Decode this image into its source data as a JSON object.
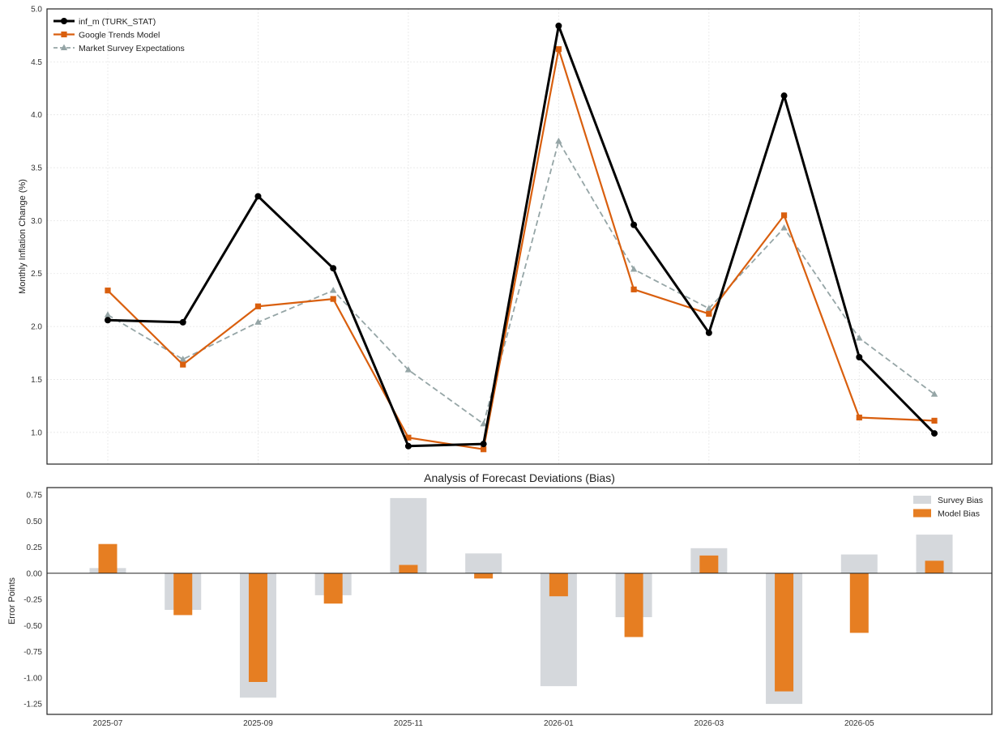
{
  "chart_data": [
    {
      "type": "line",
      "title": "",
      "xlabel": "",
      "ylabel": "Monthly Inflation Change (%)",
      "ylim": [
        0.7,
        5.0
      ],
      "yticks": [
        1.0,
        1.5,
        2.0,
        2.5,
        3.0,
        3.5,
        4.0,
        4.5,
        5.0
      ],
      "ytick_labels": [
        "1.0",
        "1.5",
        "2.0",
        "2.5",
        "3.0",
        "3.5",
        "4.0",
        "4.5",
        "5.0"
      ],
      "x": [
        "2025-07",
        "2025-08",
        "2025-09",
        "2025-10",
        "2025-11",
        "2025-12",
        "2026-01",
        "2026-02",
        "2026-03",
        "2026-04",
        "2026-05",
        "2026-06"
      ],
      "grid": true,
      "legend_position": "top-left",
      "series": [
        {
          "name": "inf_m (TURK_STAT)",
          "color": "#000000",
          "marker": "circle",
          "dash": "solid",
          "values": [
            2.06,
            2.04,
            3.23,
            2.55,
            0.87,
            0.89,
            4.84,
            2.96,
            1.94,
            4.18,
            1.71,
            0.99
          ]
        },
        {
          "name": "Google Trends Model",
          "color": "#d95f0e",
          "marker": "square",
          "dash": "solid",
          "values": [
            2.34,
            1.64,
            2.19,
            2.26,
            0.95,
            0.84,
            4.62,
            2.35,
            2.12,
            3.05,
            1.14,
            1.11
          ]
        },
        {
          "name": "Market Survey Expectations",
          "color": "#95a5a6",
          "marker": "triangle",
          "dash": "dashed",
          "values": [
            2.11,
            1.69,
            2.04,
            2.34,
            1.59,
            1.08,
            3.75,
            2.54,
            2.17,
            2.93,
            1.89,
            1.36
          ]
        }
      ]
    },
    {
      "type": "bar",
      "title": "Analysis of Forecast Deviations (Bias)",
      "xlabel": "",
      "ylabel": "Error Points",
      "ylim": [
        -1.35,
        0.82
      ],
      "yticks": [
        -1.25,
        -1.0,
        -0.75,
        -0.5,
        -0.25,
        0.0,
        0.25,
        0.5,
        0.75
      ],
      "ytick_labels": [
        "-1.25",
        "-1.00",
        "-0.75",
        "-0.50",
        "-0.25",
        "0.00",
        "0.25",
        "0.50",
        "0.75"
      ],
      "categories": [
        "2025-07",
        "2025-08",
        "2025-09",
        "2025-10",
        "2025-11",
        "2025-12",
        "2026-01",
        "2026-02",
        "2026-03",
        "2026-04",
        "2026-05",
        "2026-06"
      ],
      "xtick_labels": [
        "2025-07",
        "2025-09",
        "2025-11",
        "2026-01",
        "2026-03",
        "2026-05"
      ],
      "legend_position": "top-right",
      "grid": false,
      "series": [
        {
          "name": "Survey Bias",
          "color": "#d5d8dc",
          "values": [
            0.05,
            -0.35,
            -1.19,
            -0.21,
            0.72,
            0.19,
            -1.08,
            -0.42,
            0.24,
            -1.25,
            0.18,
            0.37
          ]
        },
        {
          "name": "Model Bias",
          "color": "#e67e22",
          "values": [
            0.28,
            -0.4,
            -1.04,
            -0.29,
            0.08,
            -0.05,
            -0.22,
            -0.61,
            0.17,
            -1.13,
            -0.57,
            0.12
          ]
        }
      ]
    }
  ]
}
